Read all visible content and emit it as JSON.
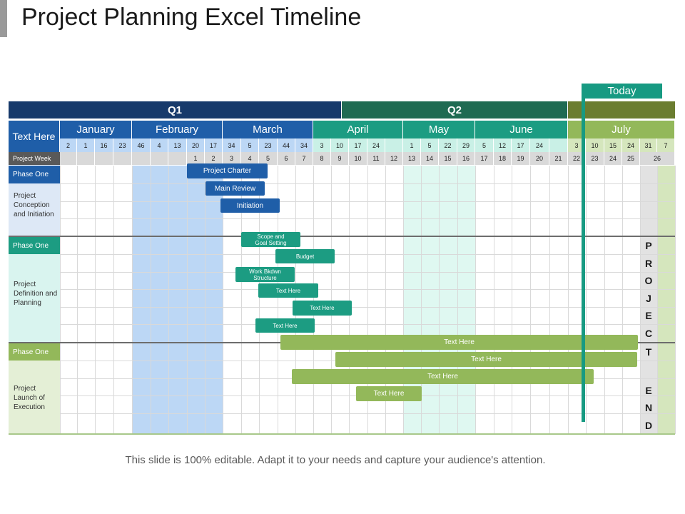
{
  "title": "Project Planning Excel Timeline",
  "footer": "This slide is 100% editable. Adapt it to your needs and capture your audience's attention.",
  "today_label": "Today",
  "colors": {
    "q1": "#173a6b",
    "q2": "#1f6b52",
    "q3": "#6b7d30",
    "blue_month": "#1f5ea8",
    "teal_month": "#1c9c82",
    "green_month": "#93b85a"
  },
  "quarters": [
    "Q1",
    "Q2",
    ""
  ],
  "header_label": "Text Here",
  "months": [
    "January",
    "February",
    "March",
    "April",
    "May",
    "June",
    "July"
  ],
  "dates": [
    "2",
    "1",
    "16",
    "23",
    "46",
    "4",
    "13",
    "20",
    "17",
    "34",
    "5",
    "23",
    "44",
    "34",
    "3",
    "10",
    "17",
    "24",
    "",
    "1",
    "5",
    "22",
    "29",
    "5",
    "12",
    "17",
    "24",
    "",
    "3",
    "10",
    "15",
    "24",
    "31",
    "7"
  ],
  "week_label": "Project Week",
  "weeks": [
    "",
    "",
    "",
    "",
    "",
    "",
    "",
    "1",
    "2",
    "3",
    "4",
    "5",
    "6",
    "7",
    "8",
    "9",
    "10",
    "11",
    "12",
    "13",
    "14",
    "15",
    "16",
    "17",
    "18",
    "19",
    "20",
    "21",
    "22",
    "23",
    "24",
    "25",
    "26"
  ],
  "sections": [
    {
      "phase": "Phase One",
      "description": "Project Conception and Initiation"
    },
    {
      "phase": "Phase One",
      "description": "Project Definition and Planning"
    },
    {
      "phase": "Phase One",
      "description": "Project Launch of Execution"
    }
  ],
  "tasks": [
    "Project Charter",
    "Main Review",
    "Initiation",
    "Scope and Goal Setting",
    "Budget",
    "Work Bkdwn Structure",
    "Text Here",
    "Text Here",
    "Text Here",
    "Text Here",
    "Text Here",
    "Text Here",
    "Text Here"
  ],
  "vertical_text": [
    "P",
    "R",
    "O",
    "J",
    "E",
    "C",
    "T",
    "E",
    "N",
    "D"
  ]
}
